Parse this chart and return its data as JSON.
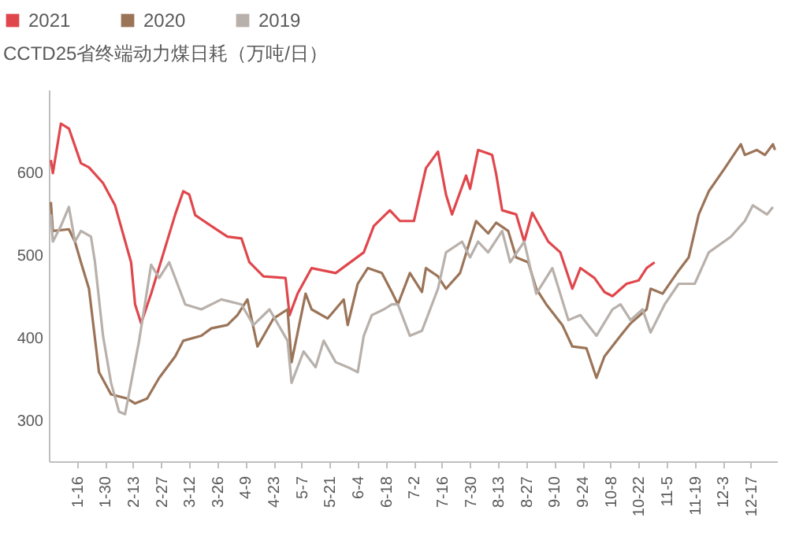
{
  "chart_data": {
    "type": "line",
    "title": "CCTD25省终端动力煤日耗（万吨/日）",
    "legend": "top left",
    "grid": false,
    "xlim": [
      "--01-02",
      "--12-30"
    ],
    "ylim": [
      250,
      700
    ],
    "yticks": [
      300,
      400,
      500,
      600
    ],
    "xticks": [
      {
        "value": "--01-16",
        "label": "1-16"
      },
      {
        "value": "--01-30",
        "label": "1-30"
      },
      {
        "value": "--02-13",
        "label": "2-13"
      },
      {
        "value": "--02-27",
        "label": "2-27"
      },
      {
        "value": "--03-12",
        "label": "3-12"
      },
      {
        "value": "--03-26",
        "label": "3-26"
      },
      {
        "value": "--04-09",
        "label": "4-9"
      },
      {
        "value": "--04-23",
        "label": "4-23"
      },
      {
        "value": "--05-07",
        "label": "5-7"
      },
      {
        "value": "--05-21",
        "label": "5-21"
      },
      {
        "value": "--06-04",
        "label": "6-4"
      },
      {
        "value": "--06-18",
        "label": "6-18"
      },
      {
        "value": "--07-02",
        "label": "7-2"
      },
      {
        "value": "--07-16",
        "label": "7-16"
      },
      {
        "value": "--07-30",
        "label": "7-30"
      },
      {
        "value": "--08-13",
        "label": "8-13"
      },
      {
        "value": "--08-27",
        "label": "8-27"
      },
      {
        "value": "--09-10",
        "label": "9-10"
      },
      {
        "value": "--09-24",
        "label": "9-24"
      },
      {
        "value": "--10-08",
        "label": "10-8"
      },
      {
        "value": "--10-22",
        "label": "10-22"
      },
      {
        "value": "--11-05",
        "label": "11-5"
      },
      {
        "value": "--11-19",
        "label": "11-19"
      },
      {
        "value": "--12-03",
        "label": "12-3"
      },
      {
        "value": "--12-17",
        "label": "12-17"
      }
    ],
    "series": [
      {
        "name": "2021",
        "color": "#e0474c",
        "x": [
          "--01-03",
          "--01-04",
          "--01-08",
          "--01-12",
          "--01-18",
          "--01-22",
          "--01-29",
          "--02-04",
          "--02-12",
          "--02-14",
          "--02-17",
          "--02-22",
          "--03-05",
          "--03-09",
          "--03-12",
          "--03-15",
          "--03-23",
          "--03-31",
          "--04-07",
          "--04-11",
          "--04-18",
          "--04-29",
          "--05-01",
          "--05-05",
          "--05-12",
          "--05-24",
          "--06-07",
          "--06-12",
          "--06-20",
          "--06-25",
          "--07-02",
          "--07-08",
          "--07-14",
          "--07-18",
          "--07-21",
          "--07-28",
          "--07-30",
          "--08-03",
          "--08-10",
          "--08-12",
          "--08-15",
          "--08-22",
          "--08-26",
          "--08-30",
          "--09-07",
          "--09-13",
          "--09-19",
          "--09-23",
          "--09-30",
          "--10-05",
          "--10-09",
          "--10-16",
          "--10-22",
          "--10-26",
          "--10-30"
        ],
        "values": [
          615,
          599,
          659,
          653,
          611,
          606,
          587,
          560,
          491,
          440,
          417,
          453,
          549,
          577,
          573,
          548,
          535,
          522,
          520,
          491,
          474,
          472,
          427,
          453,
          484,
          478,
          503,
          535,
          554,
          541,
          541,
          605,
          625,
          573,
          549,
          596,
          580,
          627,
          621,
          598,
          554,
          549,
          516,
          551,
          516,
          503,
          459,
          484,
          472,
          455,
          450,
          465,
          469,
          484,
          491
        ]
      },
      {
        "name": "2020",
        "color": "#9b7458",
        "x": [
          "--01-03",
          "--01-04",
          "--01-12",
          "--01-15",
          "--01-18",
          "--01-22",
          "--01-27",
          "--02-02",
          "--02-10",
          "--02-14",
          "--02-20",
          "--02-26",
          "--03-05",
          "--03-09",
          "--03-18",
          "--03-23",
          "--03-31",
          "--04-05",
          "--04-10",
          "--04-15",
          "--04-23",
          "--04-30",
          "--05-02",
          "--05-09",
          "--05-12",
          "--05-20",
          "--05-28",
          "--05-30",
          "--06-04",
          "--06-09",
          "--06-16",
          "--06-21",
          "--06-24",
          "--06-30",
          "--07-06",
          "--07-08",
          "--07-14",
          "--07-18",
          "--07-25",
          "--08-02",
          "--08-08",
          "--08-12",
          "--08-18",
          "--08-22",
          "--08-28",
          "--09-01",
          "--09-06",
          "--09-14",
          "--09-19",
          "--09-26",
          "--10-01",
          "--10-05",
          "--10-13",
          "--10-18",
          "--10-26",
          "--10-28",
          "--11-03",
          "--11-11",
          "--11-16",
          "--11-21",
          "--11-26",
          "--12-04",
          "--12-12",
          "--12-14",
          "--12-20",
          "--12-24",
          "--12-28",
          "--12-29"
        ],
        "values": [
          564,
          529,
          531,
          516,
          491,
          459,
          358,
          331,
          326,
          320,
          326,
          351,
          377,
          396,
          402,
          411,
          415,
          427,
          446,
          389,
          423,
          434,
          370,
          453,
          434,
          423,
          446,
          415,
          465,
          484,
          478,
          455,
          440,
          478,
          455,
          484,
          474,
          459,
          478,
          541,
          526,
          539,
          529,
          497,
          491,
          459,
          440,
          415,
          389,
          387,
          351,
          377,
          402,
          417,
          434,
          459,
          453,
          481,
          497,
          549,
          577,
          605,
          634,
          621,
          627,
          621,
          634,
          627
        ]
      },
      {
        "name": "2019",
        "color": "#b8b0ab",
        "x": [
          "--01-03",
          "--01-04",
          "--01-08",
          "--01-12",
          "--01-15",
          "--01-18",
          "--01-23",
          "--01-25",
          "--01-29",
          "--02-02",
          "--02-06",
          "--02-09",
          "--02-16",
          "--02-22",
          "--02-26",
          "--03-02",
          "--03-10",
          "--03-18",
          "--03-28",
          "--04-07",
          "--04-13",
          "--04-21",
          "--04-30",
          "--05-02",
          "--05-08",
          "--05-14",
          "--05-18",
          "--05-24",
          "--05-30",
          "--06-04",
          "--06-07",
          "--06-11",
          "--06-17",
          "--06-21",
          "--06-24",
          "--06-30",
          "--07-06",
          "--07-14",
          "--07-18",
          "--07-26",
          "--07-30",
          "--08-03",
          "--08-08",
          "--08-15",
          "--08-19",
          "--08-26",
          "--09-01",
          "--09-09",
          "--09-17",
          "--09-23",
          "--10-01",
          "--10-09",
          "--10-13",
          "--10-18",
          "--10-24",
          "--10-28",
          "--11-04",
          "--11-11",
          "--11-19",
          "--11-26",
          "--12-07",
          "--12-14",
          "--12-18",
          "--12-25",
          "--12-28"
        ],
        "values": [
          549,
          516,
          535,
          558,
          516,
          529,
          522,
          491,
          402,
          345,
          310,
          307,
          396,
          488,
          472,
          491,
          440,
          434,
          446,
          440,
          415,
          434,
          396,
          345,
          383,
          364,
          396,
          370,
          364,
          358,
          402,
          427,
          434,
          440,
          440,
          402,
          408,
          459,
          503,
          516,
          497,
          516,
          503,
          529,
          491,
          516,
          453,
          484,
          421,
          427,
          402,
          434,
          440,
          421,
          434,
          406,
          440,
          465,
          465,
          503,
          522,
          541,
          560,
          549,
          558
        ]
      }
    ]
  }
}
